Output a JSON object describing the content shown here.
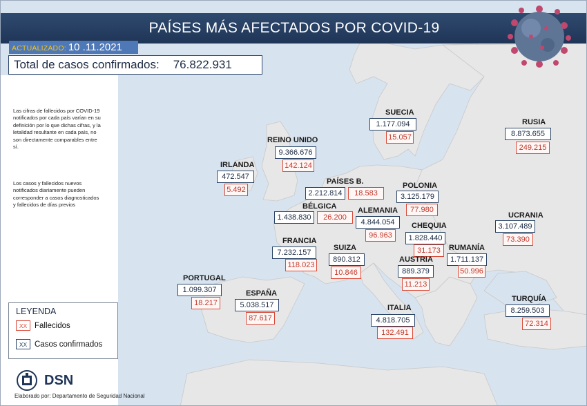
{
  "header": {
    "title": "PAÍSES MÁS AFECTADOS POR COVID-19"
  },
  "updated": {
    "label": "ACTUALIZADO:",
    "date": "10 .11.2021"
  },
  "total": {
    "label": "Total de casos confirmados:",
    "value": "76.822.931"
  },
  "notes": [
    "Las cifras de fallecidos por COVID-19 notificados por cada país varían en su definición por lo que dichas cifras, y la letalidad resultante en cada país, no son directamente comparables entre sí.",
    "Los casos y fallecidos nuevos notificados diariamente pueden corresponder a casos diagnosticados y fallecidos de días previos"
  ],
  "legend": {
    "title": "LEYENDA",
    "sample": "XX",
    "deaths_label": "Fallecidos",
    "cases_label": "Casos confirmados"
  },
  "footer": {
    "logo_text": "DSN",
    "credit": "Elaborado por: Departamento de Seguridad Nacional"
  },
  "colors": {
    "header": "#1f3557",
    "updated_bg": "#4f78b6",
    "deaths": "#d94a38",
    "cases": "#2a4466",
    "land": "#e6e6e6",
    "sea": "#d7e3ef"
  },
  "countries": [
    {
      "name": "SUECIA",
      "cases": "1.177.094",
      "deaths": "15.057"
    },
    {
      "name": "RUSIA",
      "cases": "8.873.655",
      "deaths": "249.215"
    },
    {
      "name": "REINO UNIDO",
      "cases": "9.366.676",
      "deaths": "142.124"
    },
    {
      "name": "IRLANDA",
      "cases": "472.547",
      "deaths": "5.492"
    },
    {
      "name": "PAÍSES B.",
      "cases": "2.212.814",
      "deaths": "18.583"
    },
    {
      "name": "POLONIA",
      "cases": "3.125.179",
      "deaths": "77.980"
    },
    {
      "name": "BÉLGICA",
      "cases": "1.438.830",
      "deaths": "26.200"
    },
    {
      "name": "ALEMANIA",
      "cases": "4.844.054",
      "deaths": "96.963"
    },
    {
      "name": "UCRANIA",
      "cases": "3.107.489",
      "deaths": "73.390"
    },
    {
      "name": "CHEQUIA",
      "cases": "1.828.440",
      "deaths": "31.173"
    },
    {
      "name": "FRANCIA",
      "cases": "7.232.157",
      "deaths": "118.023"
    },
    {
      "name": "SUIZA",
      "cases": "890.312",
      "deaths": "10.846"
    },
    {
      "name": "RUMANÍA",
      "cases": "1.711.137",
      "deaths": "50.996"
    },
    {
      "name": "AUSTRIA",
      "cases": "889.379",
      "deaths": "11.213"
    },
    {
      "name": "PORTUGAL",
      "cases": "1.099.307",
      "deaths": "18.217"
    },
    {
      "name": "ESPAÑA",
      "cases": "5.038.517",
      "deaths": "87.617"
    },
    {
      "name": "ITALIA",
      "cases": "4.818.705",
      "deaths": "132.491"
    },
    {
      "name": "TURQUÍA",
      "cases": "8.259.503",
      "deaths": "72.314"
    }
  ]
}
